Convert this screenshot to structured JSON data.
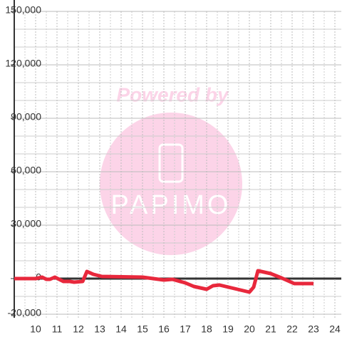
{
  "chart_data": {
    "type": "line",
    "watermark": {
      "title": "Powered by",
      "brand": "PAPIMO"
    },
    "xlim": [
      9,
      24.3
    ],
    "xticks": [
      10,
      11,
      12,
      13,
      14,
      15,
      16,
      17,
      18,
      19,
      20,
      21,
      22,
      23,
      24
    ],
    "x_minor_ticks": [
      9.5,
      10.5,
      11.5,
      12.5,
      13.5,
      14.5,
      15.5,
      16.5,
      17.5,
      18.5,
      19.5,
      20.5,
      21.5,
      22.5,
      23.5
    ],
    "ylim": [
      -22000,
      150000
    ],
    "yticks": [
      {
        "value": -20000,
        "label": "-20,000"
      },
      0,
      {
        "value": 30000,
        "label": "30,000"
      },
      {
        "value": 60000,
        "label": "60,000"
      },
      {
        "value": 90000,
        "label": "90,000"
      },
      {
        "value": 120000,
        "label": "120,000"
      },
      {
        "value": 150000,
        "label": "150,000"
      }
    ],
    "y_minor_ticks": [
      -10000,
      10000,
      20000,
      40000,
      50000,
      70000,
      80000,
      100000,
      110000,
      130000,
      140000
    ],
    "grid": true,
    "series": [
      {
        "color": "#e8283c",
        "x": [
          9.0,
          10.0,
          10.3,
          10.5,
          10.67,
          10.9,
          11.1,
          11.3,
          11.6,
          11.8,
          12.2,
          12.4,
          12.7,
          13.1,
          15.0,
          15.5,
          16.0,
          16.4,
          17.0,
          17.4,
          18.0,
          18.3,
          18.6,
          19.3,
          20.0,
          20.2,
          20.4,
          21.0,
          21.5,
          22.1,
          22.5,
          23.0
        ],
        "values": [
          0,
          0,
          800,
          -400,
          -400,
          800,
          -400,
          -1600,
          -1600,
          -2000,
          -1600,
          4000,
          2400,
          1200,
          800,
          0,
          -800,
          -400,
          -2400,
          -4400,
          -6000,
          -4000,
          -3600,
          -5600,
          -7600,
          -4800,
          4400,
          2800,
          400,
          -2800,
          -2800,
          -2800
        ]
      }
    ]
  }
}
